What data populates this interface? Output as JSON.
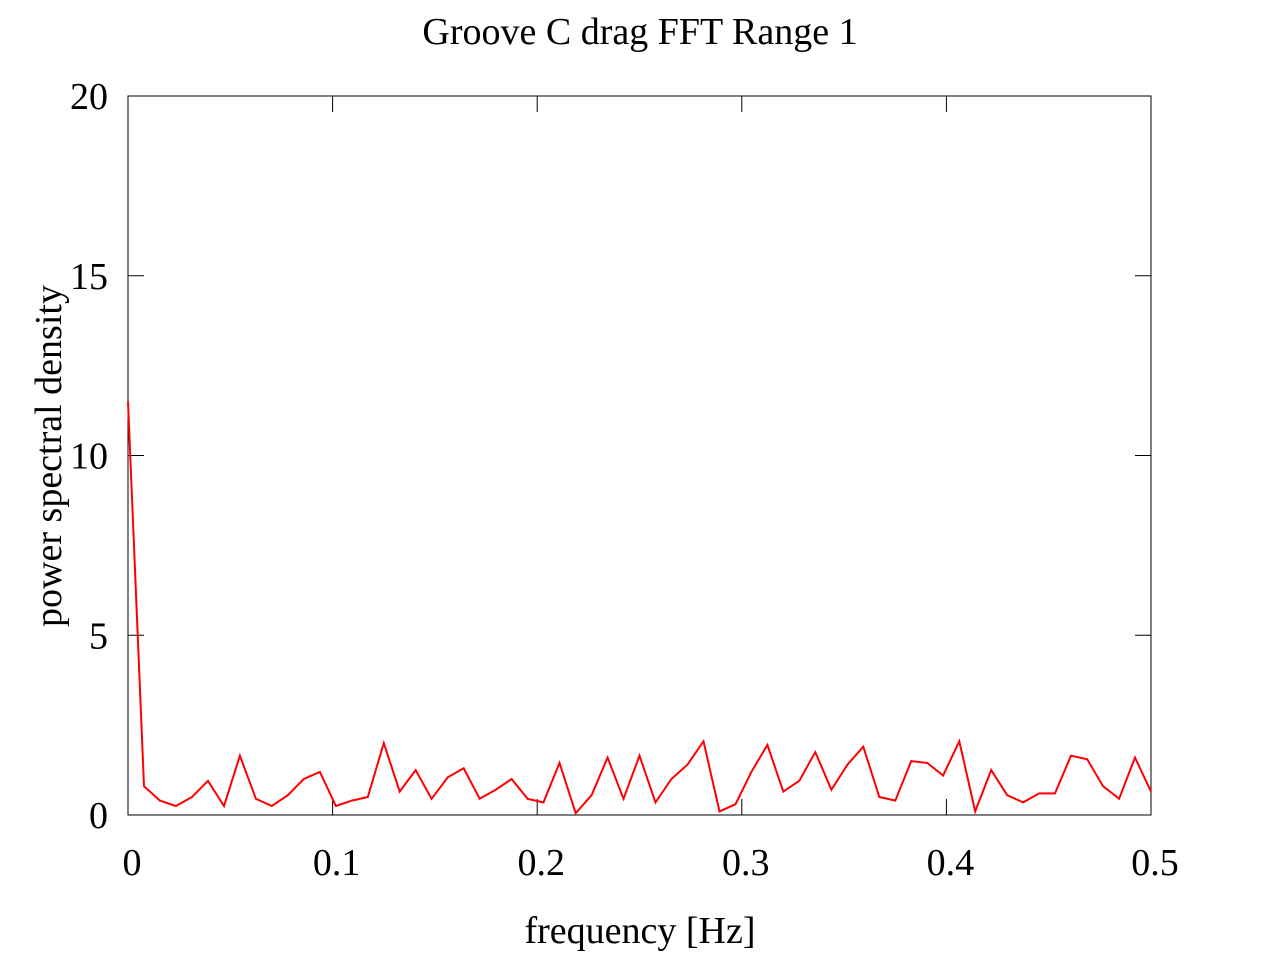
{
  "chart_data": {
    "type": "line",
    "title": "Groove C drag FFT Range 1",
    "xlabel": "frequency [Hz]",
    "ylabel": "power spectral density",
    "xlim": [
      0,
      0.5
    ],
    "ylim": [
      0,
      20
    ],
    "xticks": [
      0,
      0.1,
      0.2,
      0.3,
      0.4,
      0.5
    ],
    "xtick_labels": [
      "0",
      "0.1",
      "0.2",
      "0.3",
      "0.4",
      "0.5"
    ],
    "yticks": [
      0,
      5,
      10,
      15,
      20
    ],
    "ytick_labels": [
      "0",
      "5",
      "10",
      "15",
      "20"
    ],
    "grid": false,
    "series": [
      {
        "color": "#ff0000",
        "x": [
          0,
          0.0078,
          0.0156,
          0.0234,
          0.0313,
          0.0391,
          0.0469,
          0.0547,
          0.0625,
          0.0703,
          0.0781,
          0.0859,
          0.0938,
          0.1016,
          0.1094,
          0.1172,
          0.125,
          0.1328,
          0.1406,
          0.1484,
          0.1563,
          0.1641,
          0.1719,
          0.1797,
          0.1875,
          0.1953,
          0.2031,
          0.2109,
          0.2188,
          0.2266,
          0.2344,
          0.2422,
          0.25,
          0.2578,
          0.2656,
          0.2734,
          0.2813,
          0.2891,
          0.2969,
          0.3047,
          0.3125,
          0.3203,
          0.3281,
          0.3359,
          0.3438,
          0.3516,
          0.3594,
          0.3672,
          0.375,
          0.3828,
          0.3906,
          0.3984,
          0.4063,
          0.4141,
          0.4219,
          0.4297,
          0.4375,
          0.4453,
          0.4531,
          0.4609,
          0.4688,
          0.4766,
          0.4844,
          0.4922,
          0.5
        ],
        "y": [
          11.5,
          0.8,
          0.4,
          0.25,
          0.5,
          0.95,
          0.25,
          1.65,
          0.45,
          0.25,
          0.55,
          1.0,
          1.2,
          0.25,
          0.4,
          0.5,
          2.0,
          0.65,
          1.25,
          0.45,
          1.05,
          1.3,
          0.45,
          0.7,
          1.0,
          0.45,
          0.35,
          1.45,
          0.05,
          0.55,
          1.6,
          0.45,
          1.65,
          0.35,
          1.0,
          1.4,
          2.05,
          0.1,
          0.3,
          1.2,
          1.95,
          0.65,
          0.95,
          1.75,
          0.7,
          1.4,
          1.9,
          0.5,
          0.4,
          1.5,
          1.45,
          1.1,
          2.05,
          0.1,
          1.25,
          0.55,
          0.35,
          0.6,
          0.6,
          1.65,
          1.55,
          0.8,
          0.45,
          1.6,
          0.65
        ]
      }
    ]
  }
}
